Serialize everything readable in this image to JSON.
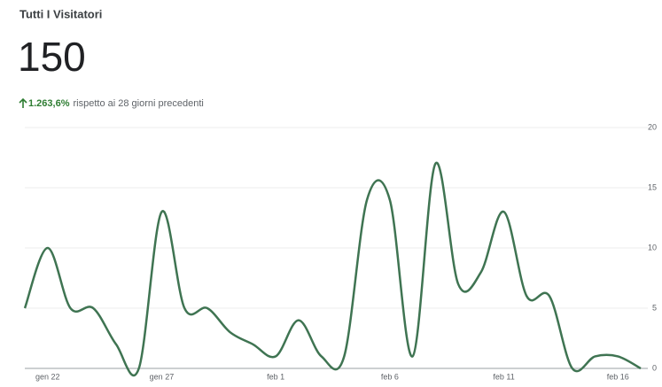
{
  "header": {
    "title": "Tutti I Visitatori",
    "total": 150,
    "change": "1.263,6%",
    "comparison": "rispetto ai 28 giorni precedenti"
  },
  "chart_data": {
    "type": "line",
    "categories": [
      null,
      "gen 22",
      null,
      null,
      null,
      null,
      "gen 27",
      null,
      null,
      null,
      null,
      "feb 1",
      null,
      null,
      null,
      null,
      "feb 6",
      null,
      null,
      null,
      null,
      "feb 11",
      null,
      null,
      null,
      null,
      "feb 16",
      null
    ],
    "series": [
      {
        "name": "Visitatori",
        "color": "#3f7452",
        "values": [
          5,
          10,
          5,
          5,
          2,
          0,
          13,
          5,
          5,
          3,
          2,
          1,
          4,
          1,
          1,
          14,
          14,
          1,
          17,
          7,
          8,
          13,
          6,
          6,
          0,
          1,
          1,
          0
        ]
      }
    ],
    "ylim": [
      0,
      20
    ],
    "yticks": [
      0,
      5,
      10,
      15,
      20
    ],
    "grid": true
  }
}
